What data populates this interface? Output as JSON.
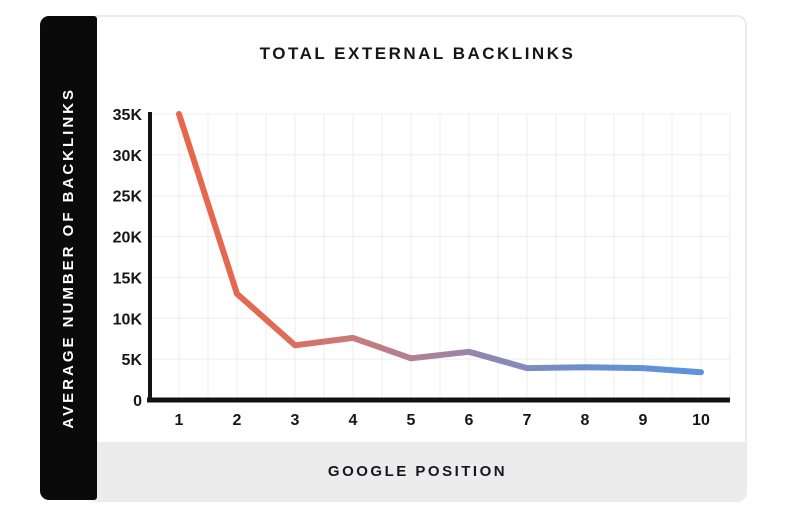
{
  "page": {
    "background": "#ffffff"
  },
  "y_axis_panel": {
    "label": "AVERAGE NUMBER OF BACKLINKS",
    "background": "#0a0a0b",
    "text_color": "#ffffff"
  },
  "footer_panel": {
    "label": "GOOGLE POSITION",
    "background": "#ececec"
  },
  "card": {
    "background": "#ffffff",
    "border_color": "#ebebeb"
  },
  "chart_data": {
    "type": "line",
    "title": "TOTAL EXTERNAL BACKLINKS",
    "xlabel": "GOOGLE POSITION",
    "ylabel": "AVERAGE NUMBER OF BACKLINKS",
    "x": [
      1,
      2,
      3,
      4,
      5,
      6,
      7,
      8,
      9,
      10
    ],
    "values": [
      35000,
      13000,
      6700,
      7600,
      5100,
      5900,
      3900,
      4000,
      3900,
      3400
    ],
    "y_ticks": [
      35000,
      30000,
      25000,
      20000,
      15000,
      10000,
      5000,
      0
    ],
    "y_tick_labels": [
      "35K",
      "30K",
      "25K",
      "20K",
      "15K",
      "10K",
      "5K",
      "0"
    ],
    "ylim": [
      0,
      35000
    ],
    "grid": true,
    "grid_color": "#ededed",
    "axis_color": "#131316",
    "tick_label_color": "#17171a",
    "legend": "none",
    "line_width": 6,
    "line_gradient": [
      {
        "offset": "0%",
        "color": "#e8664a"
      },
      {
        "offset": "18%",
        "color": "#e06b55"
      },
      {
        "offset": "33%",
        "color": "#c97a7d"
      },
      {
        "offset": "48%",
        "color": "#ab8198"
      },
      {
        "offset": "60%",
        "color": "#8d88b2"
      },
      {
        "offset": "75%",
        "color": "#6e8fc9"
      },
      {
        "offset": "100%",
        "color": "#5a93dc"
      }
    ]
  }
}
